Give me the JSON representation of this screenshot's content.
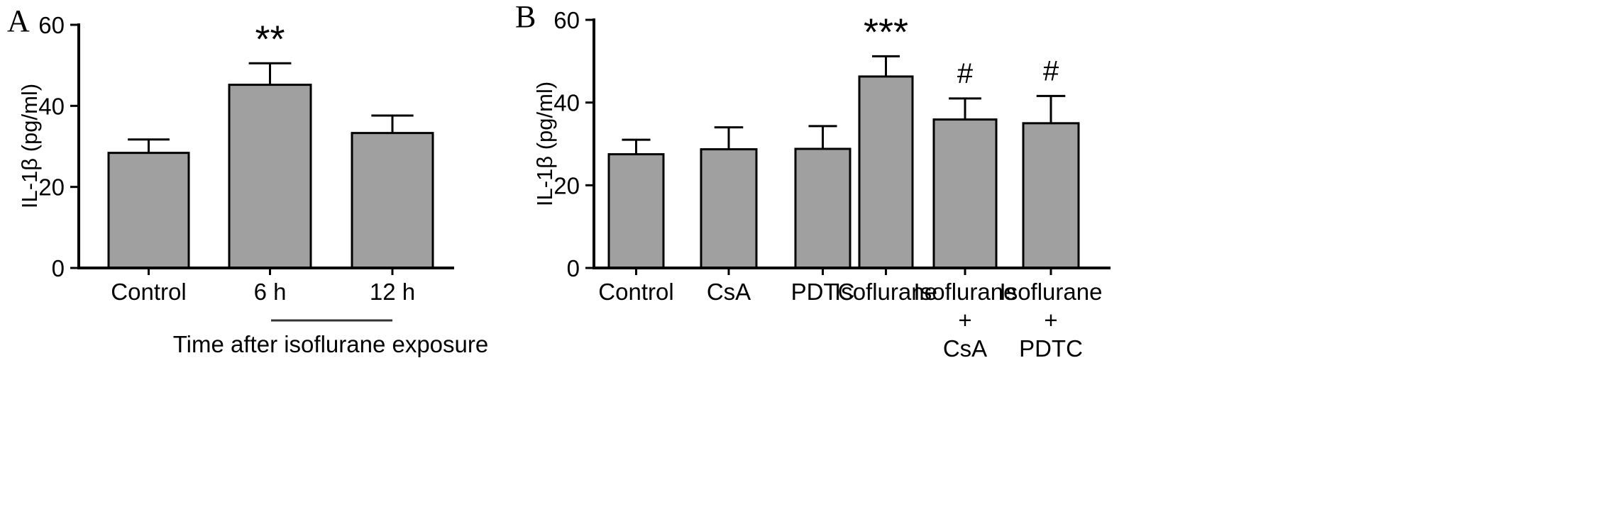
{
  "colors": {
    "bar": "#a0a0a0",
    "outline": "#000000",
    "background": "#ffffff"
  },
  "chart_data": [
    {
      "type": "bar",
      "panel": "A",
      "ylabel": "IL-1β (pg/ml)",
      "ylim": [
        0,
        60
      ],
      "yticks": [
        0,
        20,
        40,
        60
      ],
      "categories": [
        [
          "Control"
        ],
        [
          "6 h"
        ],
        [
          "12 h"
        ]
      ],
      "values": [
        28.4,
        45.2,
        33.3
      ],
      "errors": [
        3.3,
        5.3,
        4.3
      ],
      "significance": [
        "",
        "**",
        ""
      ],
      "annotation": "Time after isoflurane exposure",
      "grid": false,
      "legend": "none"
    },
    {
      "type": "bar",
      "panel": "B",
      "ylabel": "IL-1β (pg/ml)",
      "ylim": [
        0,
        60
      ],
      "yticks": [
        0,
        20,
        40,
        60
      ],
      "categories": [
        [
          "Control"
        ],
        [
          "CsA"
        ],
        [
          "PDTC"
        ],
        [
          "Isoflurane"
        ],
        [
          "Isoflurane",
          "+",
          "CsA"
        ],
        [
          "Isoflurane",
          "+",
          "PDTC"
        ]
      ],
      "values": [
        27.5,
        28.7,
        28.8,
        46.3,
        35.9,
        35.0
      ],
      "errors": [
        3.5,
        5.3,
        5.5,
        4.9,
        5.1,
        6.6
      ],
      "significance": [
        "",
        "",
        "",
        "***",
        "#",
        "#"
      ],
      "grid": false,
      "legend": "none"
    }
  ]
}
